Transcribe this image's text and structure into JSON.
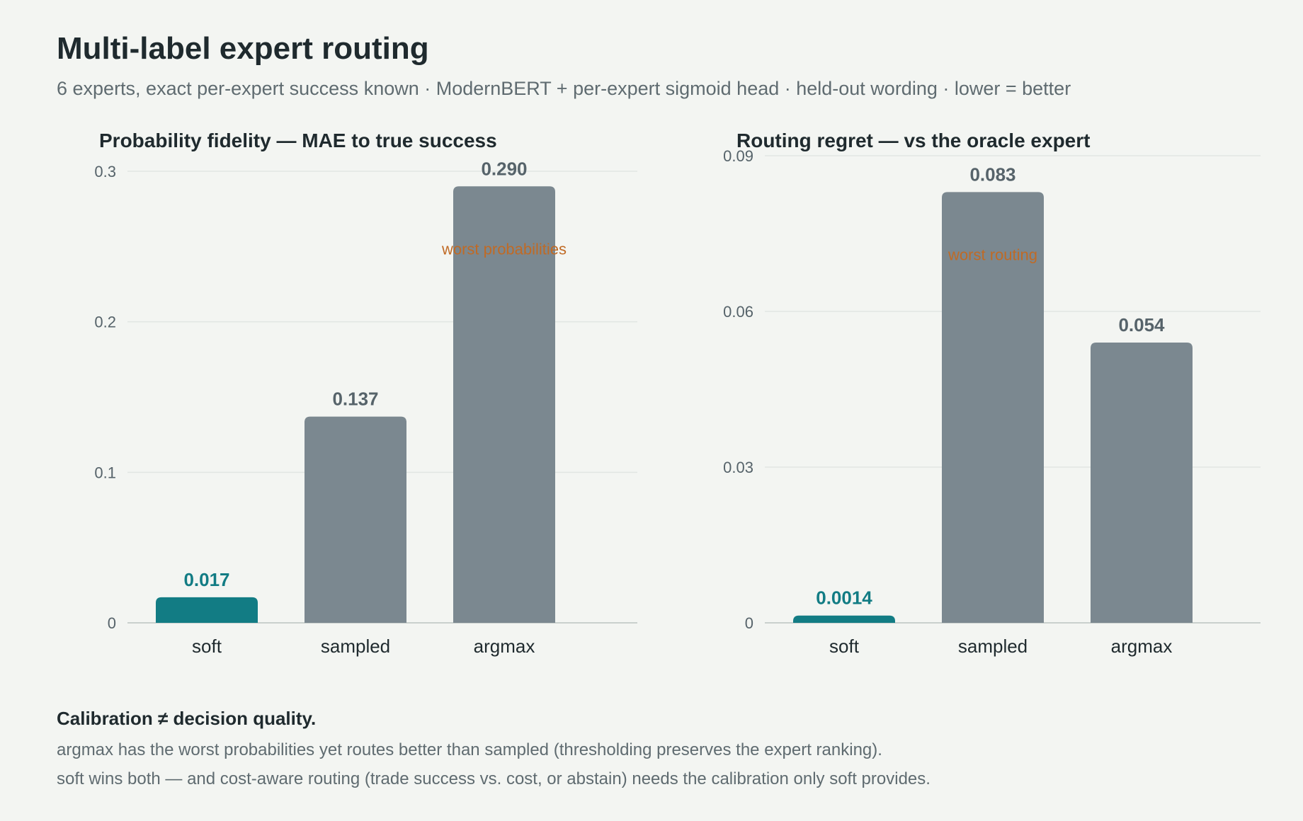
{
  "header": {
    "title": "Multi-label expert routing",
    "subtitle": "6 experts, exact per-expert success known · ModernBERT + per-expert sigmoid head · held-out wording · lower = better"
  },
  "colors": {
    "highlight": "#127c84",
    "bar": "#7b8890",
    "label": "#56636a",
    "annotation": "#c06a25",
    "grid": "#e1e6e3",
    "axis": "#c9d0cd"
  },
  "chart_data": [
    {
      "type": "bar",
      "title": "Probability fidelity — MAE to true success",
      "categories": [
        "soft",
        "sampled",
        "argmax"
      ],
      "values": [
        0.017,
        0.137,
        0.29
      ],
      "value_labels": [
        "0.017",
        "0.137",
        "0.290"
      ],
      "highlight_index": 0,
      "ylim": [
        0,
        0.3
      ],
      "yticks": [
        0,
        0.1,
        0.2,
        0.3
      ],
      "ytick_labels": [
        "0",
        "0.1",
        "0.2",
        "0.3"
      ],
      "grid": true,
      "annotation": {
        "category": "argmax",
        "text": "worst probabilities"
      }
    },
    {
      "type": "bar",
      "title": "Routing regret — vs the oracle expert",
      "categories": [
        "soft",
        "sampled",
        "argmax"
      ],
      "values": [
        0.0014,
        0.083,
        0.054
      ],
      "value_labels": [
        "0.0014",
        "0.083",
        "0.054"
      ],
      "highlight_index": 0,
      "ylim": [
        0,
        0.09
      ],
      "yticks": [
        0,
        0.03,
        0.06,
        0.09
      ],
      "ytick_labels": [
        "0",
        "0.03",
        "0.06",
        "0.09"
      ],
      "grid": true,
      "annotation": {
        "category": "sampled",
        "text": "worst routing"
      }
    }
  ],
  "footer": {
    "heading": "Calibration ≠ decision quality.",
    "line1": "argmax has the worst probabilities yet routes better than sampled (thresholding preserves the expert ranking).",
    "line2": "soft wins both — and cost-aware routing (trade success vs. cost, or abstain) needs the calibration only soft provides."
  }
}
